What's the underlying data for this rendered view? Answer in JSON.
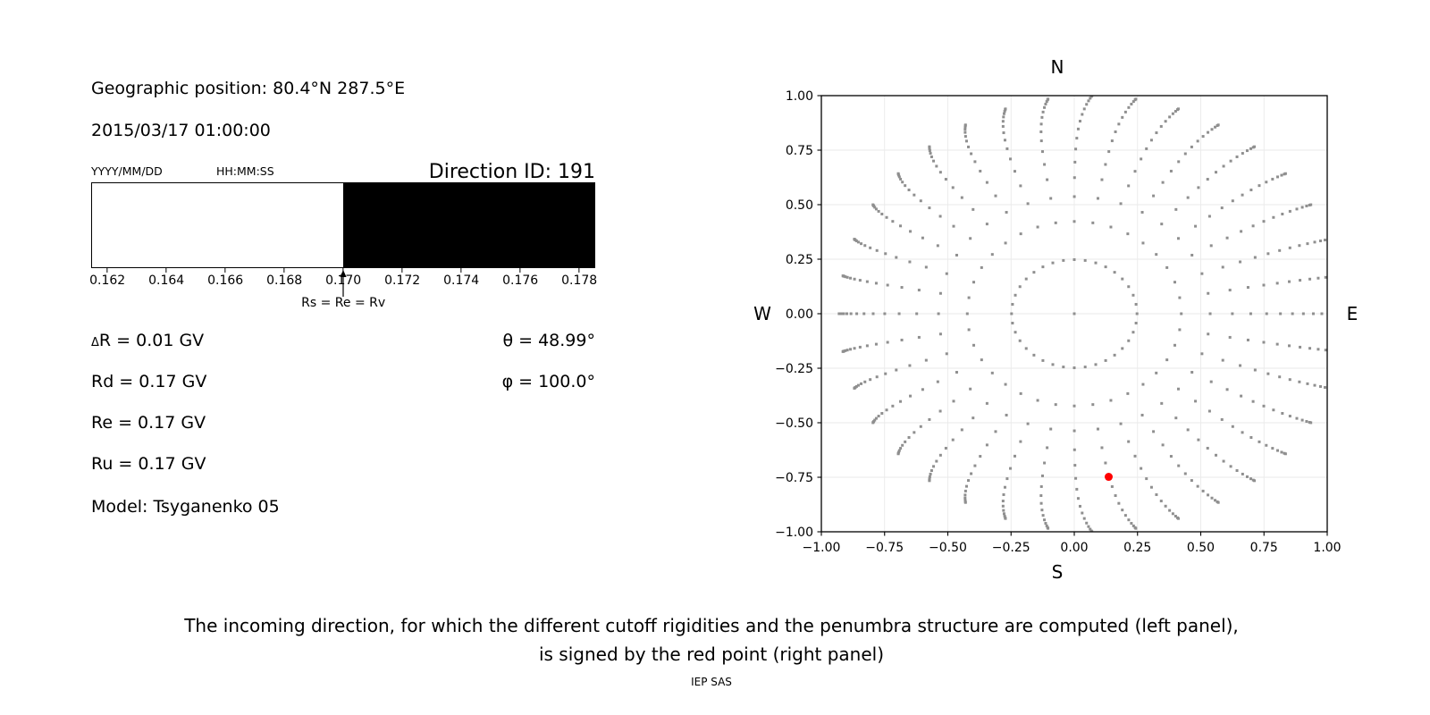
{
  "info_panel": {
    "geographic_position": "Geographic position: 80.4°N 287.5°E",
    "datetime": "2015/03/17 01:00:00",
    "date_format_label": "YYYY/MM/DD",
    "time_format_label": "HH:MM:SS",
    "direction_id": "Direction ID: 191",
    "delta_symbol": "Δ",
    "delta_r": "R = 0.01 GV",
    "rd": "Rd = 0.17 GV",
    "re": "Re = 0.17 GV",
    "ru": "Ru = 0.17 GV",
    "model": "Model: Tsyganenko 05",
    "theta": "θ = 48.99°",
    "phi": "φ = 100.0°"
  },
  "caption": {
    "line1": "The incoming direction, for which the different cutoff rigidities and the penumbra structure are computed (left panel),",
    "line2": "is signed by the red point (right panel)",
    "credit": "IEP SAS"
  },
  "chart_data": [
    {
      "type": "bar",
      "name": "penumbra-structure",
      "description": "Penumbra structure: rigidity band from ~0.1615 to ~0.1785 GV; allowed (white) below 0.170 GV, forbidden (black) above",
      "x_range": [
        0.16145,
        0.17854
      ],
      "x_ticks": [
        0.162,
        0.164,
        0.166,
        0.168,
        0.17,
        0.172,
        0.174,
        0.176,
        0.178
      ],
      "x_tick_labels": [
        "0.162",
        "0.164",
        "0.166",
        "0.168",
        "0.170",
        "0.172",
        "0.174",
        "0.176",
        "0.178"
      ],
      "bands": [
        {
          "from": 0.16145,
          "to": 0.17,
          "color": "#ffffff",
          "meaning": "allowed"
        },
        {
          "from": 0.17,
          "to": 0.17854,
          "color": "#000000",
          "meaning": "forbidden"
        }
      ],
      "annotation": {
        "text": "Rs = Re = Rv",
        "x": 0.17
      }
    },
    {
      "type": "scatter",
      "name": "incoming-direction-map",
      "xlim": [
        -1,
        1
      ],
      "ylim": [
        -1,
        1
      ],
      "grid": true,
      "grid_color": "#eaeaea",
      "x_tick_values": [
        -1,
        -0.75,
        -0.5,
        -0.25,
        0,
        0.25,
        0.5,
        0.75,
        1
      ],
      "x_tick_labels": [
        "−1.00",
        "−0.75",
        "−0.50",
        "−0.25",
        "0.00",
        "0.25",
        "0.50",
        "0.75",
        "1.00"
      ],
      "y_tick_values": [
        1,
        0.75,
        0.5,
        0.25,
        0,
        -0.25,
        -0.5,
        -0.75,
        -1
      ],
      "y_tick_labels": [
        "1.00",
        "0.75",
        "0.50",
        "0.25",
        "0.00",
        "−0.25",
        "−0.50",
        "−0.75",
        "−1.00"
      ],
      "compass": {
        "top": "N",
        "bottom": "S",
        "left": "W",
        "right": "E"
      },
      "direction_grid": {
        "marker": "square",
        "marker_size_px": 3,
        "color": "#8f8f8f",
        "azimuths_deg": [
          0,
          10,
          20,
          30,
          40,
          50,
          60,
          70,
          80,
          90,
          100,
          110,
          120,
          130,
          140,
          150,
          160,
          170,
          180,
          190,
          200,
          210,
          220,
          230,
          240,
          250,
          260,
          270,
          280,
          290,
          300,
          310,
          320,
          330,
          340,
          350
        ],
        "ring_zenith_deg": [
          14.4,
          25.0,
          32.5,
          38.9,
          44.5,
          49.0,
          53.6,
          57.9,
          62.1,
          66.0,
          69.9,
          73.7,
          77.4,
          81.0,
          84.6,
          88.2
        ],
        "ring_radii": [
          0.248,
          0.423,
          0.537,
          0.624,
          0.695,
          0.755,
          0.805,
          0.847,
          0.883,
          0.914,
          0.939,
          0.96,
          0.976,
          0.988,
          0.996,
          0.9995
        ],
        "center_point": true,
        "east_drift": {
          "amount": 0.07,
          "power": 9
        }
      },
      "selected_direction": {
        "marker": "circle",
        "color": "#ff0000",
        "radius_px": 4.5,
        "x": 0.136,
        "y": -0.748
      }
    }
  ]
}
